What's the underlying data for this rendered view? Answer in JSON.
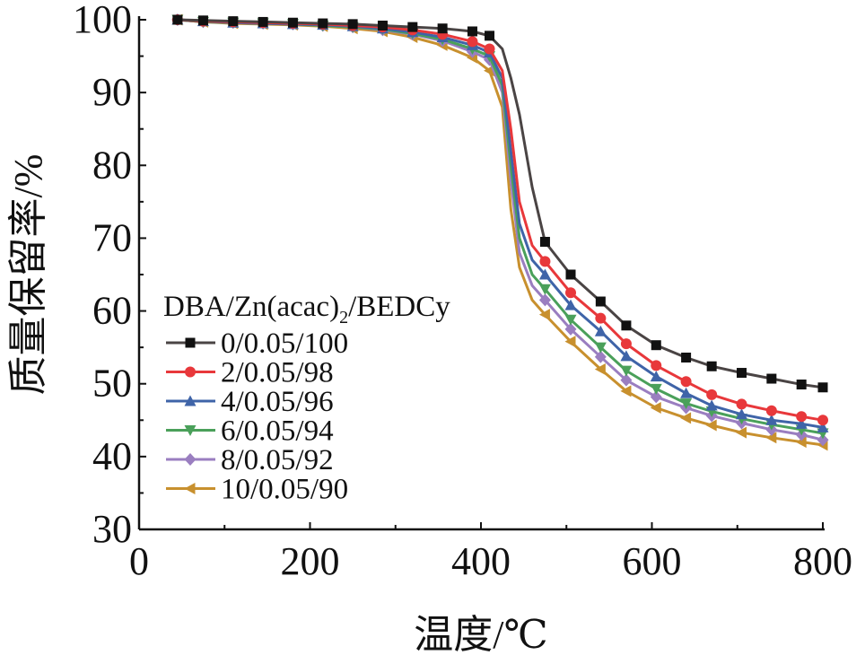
{
  "chart_data": {
    "type": "line",
    "title": "",
    "xlabel": "温度/℃",
    "ylabel": "质量保留率/%",
    "xlim": [
      0,
      800
    ],
    "ylim": [
      30,
      100
    ],
    "xticks": [
      0,
      200,
      400,
      600,
      800
    ],
    "yticks": [
      30,
      40,
      50,
      60,
      70,
      80,
      90,
      100
    ],
    "grid": false,
    "legend_title": "DBA/Zn(acac)",
    "legend_title_sub": "2",
    "legend_title_tail": "/BEDCy",
    "legend_position": "center-left",
    "x": [
      45,
      75,
      110,
      145,
      180,
      215,
      250,
      285,
      320,
      355,
      390,
      410,
      425,
      435,
      445,
      460,
      475,
      505,
      540,
      570,
      605,
      640,
      670,
      705,
      740,
      775,
      800
    ],
    "series": [
      {
        "name": "0/0.05/100",
        "color": "#4a4444",
        "marker": "square",
        "marker_color": "#111111",
        "values": [
          100,
          99.9,
          99.8,
          99.7,
          99.6,
          99.5,
          99.4,
          99.2,
          99.0,
          98.8,
          98.4,
          97.8,
          96,
          92,
          87,
          77,
          69.5,
          65,
          61.3,
          58,
          55.3,
          53.6,
          52.4,
          51.5,
          50.7,
          49.9,
          49.5
        ]
      },
      {
        "name": "2/0.05/98",
        "color": "#e8383b",
        "marker": "circle",
        "marker_color": "#e8383b",
        "values": [
          100,
          99.8,
          99.7,
          99.6,
          99.5,
          99.4,
          99.2,
          99,
          98.6,
          98,
          97,
          96,
          93,
          85,
          75,
          69,
          66.8,
          62.5,
          59,
          55.5,
          52.5,
          50.3,
          48.5,
          47.2,
          46.3,
          45.5,
          45
        ]
      },
      {
        "name": "4/0.05/96",
        "color": "#3f64a8",
        "marker": "triangle-up",
        "marker_color": "#3f64a8",
        "values": [
          100,
          99.8,
          99.6,
          99.5,
          99.4,
          99.3,
          99.1,
          98.8,
          98.3,
          97.6,
          96.5,
          95.5,
          92,
          82,
          72,
          67,
          65,
          60.8,
          57.2,
          53.8,
          51,
          48.7,
          47,
          45.8,
          45,
          44.5,
          44
        ]
      },
      {
        "name": "6/0.05/94",
        "color": "#4aa05a",
        "marker": "triangle-down",
        "marker_color": "#4aa05a",
        "values": [
          100,
          99.7,
          99.6,
          99.5,
          99.4,
          99.2,
          99,
          98.7,
          98.1,
          97.3,
          96,
          95,
          91,
          80,
          70,
          65,
          63,
          58.8,
          55,
          51.8,
          49.3,
          47.3,
          46.2,
          45.2,
          44.4,
          43.7,
          43.2
        ]
      },
      {
        "name": "8/0.05/92",
        "color": "#9a7ec0",
        "marker": "diamond",
        "marker_color": "#9a7ec0",
        "values": [
          100,
          99.7,
          99.6,
          99.5,
          99.4,
          99.2,
          99,
          98.6,
          98,
          97.1,
          95.6,
          94.5,
          90,
          78,
          68,
          63.5,
          61.5,
          57.5,
          53.7,
          50.5,
          48.2,
          46.7,
          45.6,
          44.6,
          43.7,
          43,
          42.3
        ]
      },
      {
        "name": "10/0.05/90",
        "color": "#c8902e",
        "marker": "triangle-left",
        "marker_color": "#c8902e",
        "values": [
          100,
          99.7,
          99.5,
          99.4,
          99.3,
          99.1,
          98.8,
          98.4,
          97.6,
          96.5,
          94.8,
          93,
          88,
          74,
          66,
          61.5,
          59.5,
          55.8,
          52,
          49,
          46.7,
          45.3,
          44.3,
          43.3,
          42.6,
          42,
          41.6
        ]
      }
    ]
  }
}
